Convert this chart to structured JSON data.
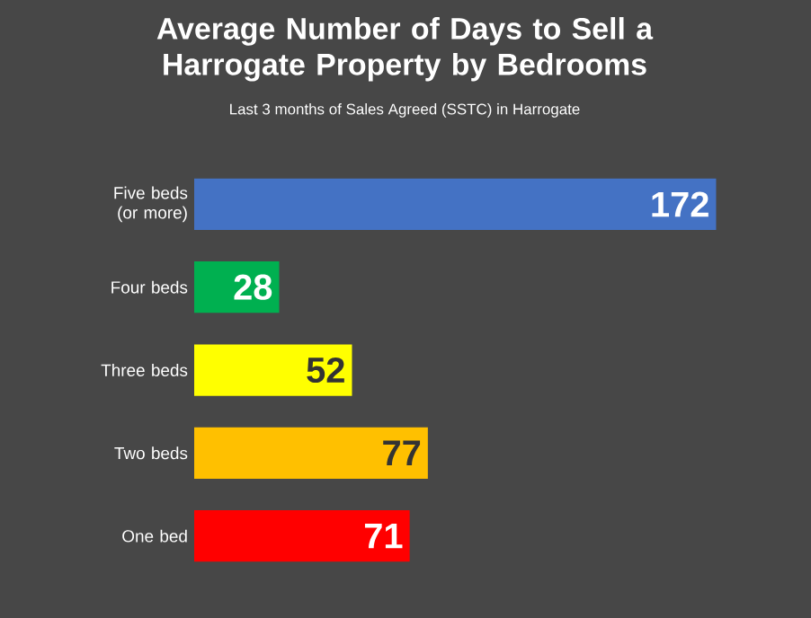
{
  "chart_data": {
    "type": "bar",
    "orientation": "horizontal",
    "title": "Average Number of Days to Sell a Harrogate Property by Bedrooms",
    "subtitle": "Last 3 months of Sales Agreed (SSTC) in Harrogate",
    "categories": [
      "Five beds (or more)",
      "Four beds",
      "Three beds",
      "Two beds",
      "One bed"
    ],
    "values": [
      172,
      28,
      52,
      77,
      71
    ],
    "colors": [
      "#4472c4",
      "#00b050",
      "#ffff00",
      "#ffc000",
      "#ff0000"
    ],
    "data_labels": true
  }
}
